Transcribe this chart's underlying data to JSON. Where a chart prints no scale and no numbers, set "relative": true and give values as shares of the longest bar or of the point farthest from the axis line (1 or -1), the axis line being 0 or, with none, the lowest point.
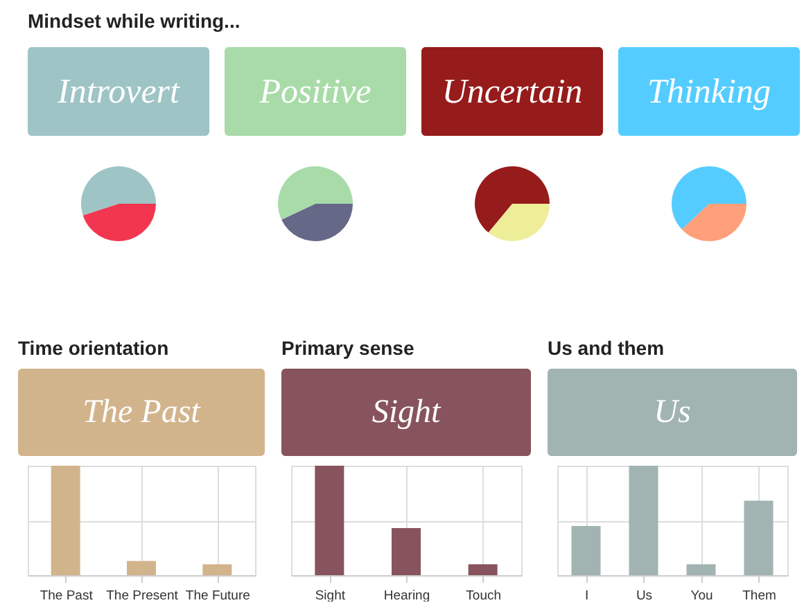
{
  "chart_data": [
    {
      "type": "other",
      "title": "Mindset while writing..."
    },
    {
      "type": "pie",
      "title": "Introvert",
      "categories": [
        null,
        null
      ],
      "values": [
        45,
        55
      ],
      "colors": [
        "#f2364f",
        "#9ec4c5"
      ]
    },
    {
      "type": "pie",
      "title": "Positive",
      "categories": [
        null,
        null
      ],
      "values": [
        43,
        57
      ],
      "colors": [
        "#666888",
        "#a8dba8"
      ]
    },
    {
      "type": "pie",
      "title": "Uncertain",
      "categories": [
        null,
        null
      ],
      "values": [
        36,
        64
      ],
      "colors": [
        "#eeee99",
        "#961b1b"
      ]
    },
    {
      "type": "pie",
      "title": "Thinking",
      "categories": [
        null,
        null
      ],
      "values": [
        38,
        62
      ],
      "colors": [
        "#ffa07a",
        "#55ccff"
      ]
    },
    {
      "type": "bar",
      "title": "Time orientation",
      "subtitle": "The Past",
      "categories": [
        "The Past",
        "The Present",
        "The Future"
      ],
      "values": [
        1,
        0.13,
        0.1
      ],
      "color": "#d2b48c",
      "relative": true,
      "grid": true
    },
    {
      "type": "bar",
      "title": "Primary sense",
      "subtitle": "Sight",
      "categories": [
        "Sight",
        "Hearing",
        "Touch"
      ],
      "values": [
        1,
        0.43,
        0.1
      ],
      "color": "#87535c",
      "relative": true,
      "grid": true
    },
    {
      "type": "bar",
      "title": "Us and them",
      "subtitle": "Us",
      "categories": [
        "I",
        "Us",
        "You",
        "Them"
      ],
      "values": [
        0.45,
        1,
        0.1,
        0.68
      ],
      "color": "#a1b4b1",
      "relative": true,
      "grid": true
    }
  ]
}
